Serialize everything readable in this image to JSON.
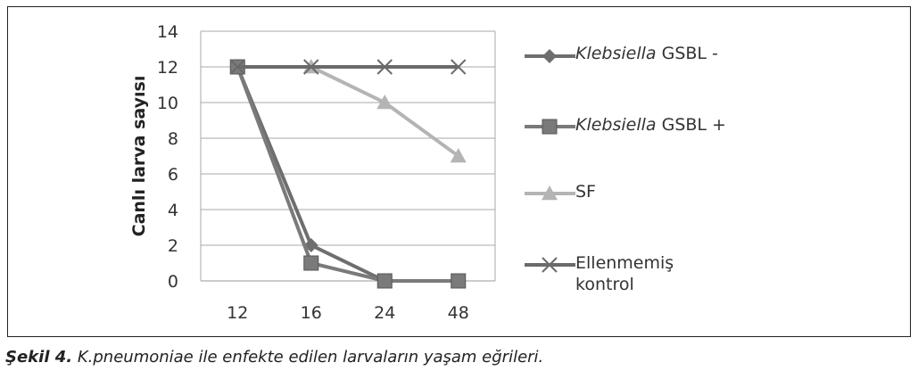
{
  "chart_data": {
    "type": "line",
    "ylabel": "Canlı larva sayısı",
    "xlabel": "",
    "categories": [
      "12",
      "16",
      "24",
      "48"
    ],
    "ylim": [
      0,
      14
    ],
    "yticks": [
      0,
      2,
      4,
      6,
      8,
      10,
      12,
      14
    ],
    "grid": true,
    "legend_position": "right",
    "series": [
      {
        "name_italic": "Klebsiella",
        "name_rest": " GSBL -",
        "marker": "diamond",
        "color": "#6e6e6e",
        "values": [
          12,
          2,
          0,
          0
        ]
      },
      {
        "name_italic": "Klebsiella",
        "name_rest": " GSBL +",
        "marker": "square",
        "color": "#7a7a7a",
        "values": [
          12,
          1,
          0,
          0
        ]
      },
      {
        "name_italic": "",
        "name_rest": "SF",
        "marker": "triangle",
        "color": "#b4b4b4",
        "values": [
          12,
          12,
          10,
          7
        ]
      },
      {
        "name_italic": "",
        "name_rest": "Ellenmemiş kontrol",
        "name_line1": "Ellenmemiş",
        "name_line2": "kontrol",
        "marker": "x",
        "color": "#6a6a6a",
        "values": [
          12,
          12,
          12,
          12
        ]
      }
    ]
  },
  "caption": {
    "label": "Şekil 4.",
    "text": " K.pneumoniae ile enfekte edilen larvaların yaşam eğrileri."
  }
}
